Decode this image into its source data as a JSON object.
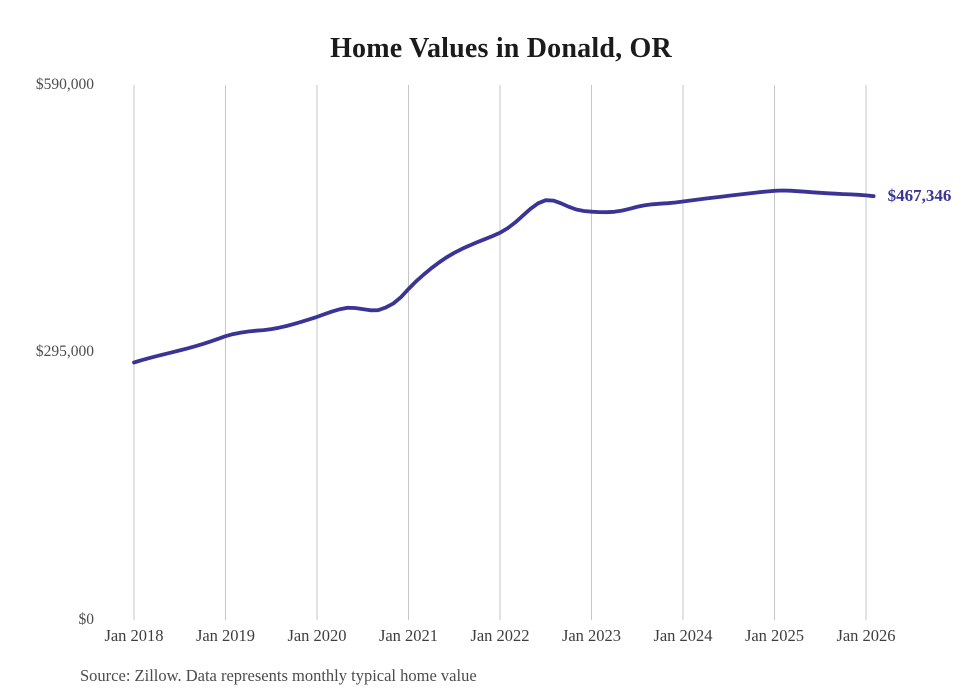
{
  "title": "Home Values in Donald, OR",
  "source_note": "Source: Zillow. Data represents monthly typical home value",
  "colors": {
    "line": "#3a3496",
    "grid": "#c6c6c6",
    "axis_text": "#4c4c4c",
    "title_text": "#1b1b1b",
    "end_label": "#3a3496",
    "background": "#ffffff"
  },
  "y_axis": {
    "ticks": [
      {
        "label": "$590,000",
        "value": 590000
      },
      {
        "label": "$295,000",
        "value": 295000
      },
      {
        "label": "$0",
        "value": 0
      }
    ]
  },
  "chart_data": {
    "type": "line",
    "title": "Home Values in Donald, OR",
    "xlabel": "",
    "ylabel": "",
    "ylim": [
      0,
      590000
    ],
    "y_tick_labels": [
      "$0",
      "$295,000",
      "$590,000"
    ],
    "x_tick_labels": [
      "Jan 2018",
      "Jan 2019",
      "Jan 2020",
      "Jan 2021",
      "Jan 2022",
      "Jan 2023",
      "Jan 2024",
      "Jan 2025",
      "Jan 2026"
    ],
    "grid": "vertical-only",
    "legend": false,
    "final_value": 467346,
    "final_value_label": "$467,346",
    "source": "Source: Zillow. Data represents monthly typical home value",
    "series": [
      {
        "name": "Typical home value",
        "color": "#3a3496",
        "x_start": "2018-01",
        "frequency": "monthly",
        "values": [
          284000,
          286500,
          288800,
          291000,
          293100,
          295200,
          297300,
          299500,
          301800,
          304300,
          307000,
          310000,
          313000,
          315300,
          317000,
          318200,
          319000,
          319700,
          320800,
          322300,
          324200,
          326500,
          329000,
          331600,
          334300,
          337300,
          340300,
          342800,
          344300,
          344100,
          342900,
          341500,
          341700,
          344500,
          349000,
          356000,
          365000,
          373500,
          381000,
          388000,
          394300,
          400000,
          405000,
          409300,
          413000,
          416500,
          419900,
          423400,
          427000,
          432000,
          438500,
          446000,
          453500,
          459500,
          463000,
          462500,
          459500,
          455800,
          452700,
          451000,
          450300,
          449800,
          449700,
          450200,
          451500,
          453500,
          455700,
          457300,
          458400,
          459100,
          459700,
          460400,
          461500,
          462600,
          463700,
          464800,
          465800,
          466800,
          467800,
          468800,
          469800,
          470800,
          471800,
          472600,
          473300,
          473600,
          473400,
          472900,
          472300,
          471700,
          471100,
          470600,
          470100,
          469700,
          469300,
          468900,
          468300,
          467346
        ]
      }
    ]
  }
}
